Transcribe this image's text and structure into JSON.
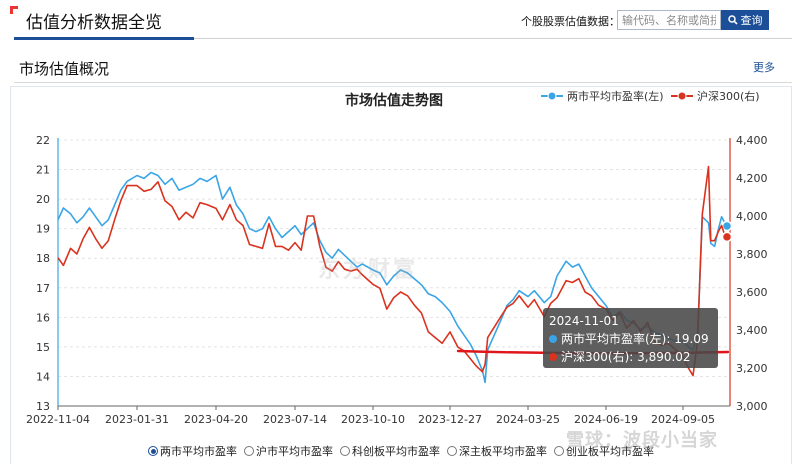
{
  "header": {
    "title": "估值分析数据全览",
    "search_label": "个股股票估值数据：",
    "search_placeholder": "输代码、名称或简拼",
    "search_button": "查询"
  },
  "section": {
    "title": "市场估值概况",
    "more": "更多"
  },
  "tooltip": {
    "date": "2024-11-01",
    "row1": "两市平均市盈率(左): 19.09",
    "row2": "沪深300(右): 3,890.02"
  },
  "options": [
    {
      "label": "两市平均市盈率",
      "selected": true
    },
    {
      "label": "沪市平均市盈率",
      "selected": false
    },
    {
      "label": "科创板平均市盈率",
      "selected": false
    },
    {
      "label": "深主板平均市盈率",
      "selected": false
    },
    {
      "label": "创业板平均市盈率",
      "selected": false
    }
  ],
  "watermark_center": "东方财富",
  "watermark_corner": "雪球：波段小当家",
  "colors": {
    "pe_line": "#3aa5e6",
    "csi_line": "#d9331f",
    "annotation": "#e0151b",
    "brand": "#1d4f99"
  },
  "chart_data": {
    "type": "line",
    "title": "市场估值走势图",
    "x_ticks": [
      "2022-11-04",
      "2023-01-31",
      "2023-04-20",
      "2023-07-14",
      "2023-10-10",
      "2023-12-27",
      "2024-03-25",
      "2024-06-19",
      "2024-09-05"
    ],
    "x_range": [
      "2022-11-04",
      "2024-11-01"
    ],
    "y_left": {
      "min": 13,
      "max": 22,
      "ticks": [
        "13",
        "14",
        "15",
        "16",
        "17",
        "18",
        "19",
        "20",
        "21",
        "22"
      ]
    },
    "y_right": {
      "min": 3000,
      "max": 4400,
      "ticks": [
        "3,000",
        "3,200",
        "3,400",
        "3,600",
        "3,800",
        "4,000",
        "4,200",
        "4,400"
      ]
    },
    "legend_position": "top-right",
    "grid": true,
    "series": [
      {
        "name": "两市平均市盈率(左)",
        "axis": "left",
        "points": [
          [
            "2022-11-04",
            19.3
          ],
          [
            "2022-11-10",
            19.7
          ],
          [
            "2022-11-18",
            19.5
          ],
          [
            "2022-11-25",
            19.2
          ],
          [
            "2022-12-02",
            19.4
          ],
          [
            "2022-12-09",
            19.7
          ],
          [
            "2022-12-16",
            19.4
          ],
          [
            "2022-12-23",
            19.1
          ],
          [
            "2022-12-30",
            19.3
          ],
          [
            "2023-01-06",
            19.8
          ],
          [
            "2023-01-13",
            20.3
          ],
          [
            "2023-01-20",
            20.6
          ],
          [
            "2023-01-31",
            20.8
          ],
          [
            "2023-02-07",
            20.7
          ],
          [
            "2023-02-14",
            20.9
          ],
          [
            "2023-02-21",
            20.8
          ],
          [
            "2023-02-28",
            20.5
          ],
          [
            "2023-03-07",
            20.7
          ],
          [
            "2023-03-14",
            20.3
          ],
          [
            "2023-03-21",
            20.4
          ],
          [
            "2023-03-28",
            20.5
          ],
          [
            "2023-04-04",
            20.7
          ],
          [
            "2023-04-11",
            20.6
          ],
          [
            "2023-04-20",
            20.8
          ],
          [
            "2023-04-27",
            20.0
          ],
          [
            "2023-05-05",
            20.4
          ],
          [
            "2023-05-12",
            19.8
          ],
          [
            "2023-05-19",
            19.5
          ],
          [
            "2023-05-26",
            19.0
          ],
          [
            "2023-06-02",
            18.9
          ],
          [
            "2023-06-09",
            19.0
          ],
          [
            "2023-06-16",
            19.4
          ],
          [
            "2023-06-23",
            19.0
          ],
          [
            "2023-06-30",
            18.7
          ],
          [
            "2023-07-07",
            18.9
          ],
          [
            "2023-07-14",
            19.1
          ],
          [
            "2023-07-21",
            18.8
          ],
          [
            "2023-07-28",
            19.0
          ],
          [
            "2023-08-04",
            19.2
          ],
          [
            "2023-08-11",
            18.6
          ],
          [
            "2023-08-18",
            18.2
          ],
          [
            "2023-08-25",
            18.0
          ],
          [
            "2023-09-01",
            18.3
          ],
          [
            "2023-09-08",
            18.1
          ],
          [
            "2023-09-15",
            17.9
          ],
          [
            "2023-09-22",
            17.7
          ],
          [
            "2023-09-28",
            17.8
          ],
          [
            "2023-10-10",
            17.6
          ],
          [
            "2023-10-17",
            17.5
          ],
          [
            "2023-10-24",
            17.1
          ],
          [
            "2023-10-31",
            17.4
          ],
          [
            "2023-11-07",
            17.6
          ],
          [
            "2023-11-14",
            17.5
          ],
          [
            "2023-11-21",
            17.3
          ],
          [
            "2023-11-28",
            17.1
          ],
          [
            "2023-12-05",
            16.8
          ],
          [
            "2023-12-12",
            16.7
          ],
          [
            "2023-12-19",
            16.5
          ],
          [
            "2023-12-27",
            16.2
          ],
          [
            "2024-01-05",
            15.7
          ],
          [
            "2024-01-12",
            15.4
          ],
          [
            "2024-01-19",
            15.1
          ],
          [
            "2024-01-26",
            14.7
          ],
          [
            "2024-02-02",
            14.2
          ],
          [
            "2024-02-05",
            13.8
          ],
          [
            "2024-02-08",
            14.9
          ],
          [
            "2024-02-23",
            15.9
          ],
          [
            "2024-03-01",
            16.4
          ],
          [
            "2024-03-08",
            16.6
          ],
          [
            "2024-03-15",
            16.9
          ],
          [
            "2024-03-25",
            16.7
          ],
          [
            "2024-04-01",
            16.9
          ],
          [
            "2024-04-12",
            16.5
          ],
          [
            "2024-04-19",
            16.7
          ],
          [
            "2024-04-26",
            17.4
          ],
          [
            "2024-05-06",
            17.9
          ],
          [
            "2024-05-13",
            17.7
          ],
          [
            "2024-05-20",
            17.8
          ],
          [
            "2024-05-27",
            17.4
          ],
          [
            "2024-06-03",
            17.0
          ],
          [
            "2024-06-11",
            16.7
          ],
          [
            "2024-06-19",
            16.4
          ],
          [
            "2024-06-26",
            16.0
          ],
          [
            "2024-07-03",
            16.2
          ],
          [
            "2024-07-10",
            15.9
          ],
          [
            "2024-07-17",
            15.8
          ],
          [
            "2024-07-24",
            15.6
          ],
          [
            "2024-07-31",
            15.7
          ],
          [
            "2024-08-07",
            15.5
          ],
          [
            "2024-08-14",
            15.4
          ],
          [
            "2024-08-21",
            15.3
          ],
          [
            "2024-08-28",
            15.2
          ],
          [
            "2024-09-05",
            15.2
          ],
          [
            "2024-09-12",
            15.0
          ],
          [
            "2024-09-18",
            14.9
          ],
          [
            "2024-09-24",
            15.5
          ],
          [
            "2024-09-27",
            17.4
          ],
          [
            "2024-09-30",
            19.4
          ],
          [
            "2024-10-08",
            19.2
          ],
          [
            "2024-10-11",
            18.5
          ],
          [
            "2024-10-16",
            18.4
          ],
          [
            "2024-10-21",
            19.0
          ],
          [
            "2024-10-25",
            19.4
          ],
          [
            "2024-10-29",
            19.2
          ],
          [
            "2024-11-01",
            19.09
          ]
        ]
      },
      {
        "name": "沪深300(右)",
        "axis": "right",
        "points": [
          [
            "2022-11-04",
            3780
          ],
          [
            "2022-11-10",
            3740
          ],
          [
            "2022-11-18",
            3830
          ],
          [
            "2022-11-25",
            3800
          ],
          [
            "2022-12-02",
            3880
          ],
          [
            "2022-12-09",
            3940
          ],
          [
            "2022-12-16",
            3880
          ],
          [
            "2022-12-23",
            3830
          ],
          [
            "2022-12-30",
            3870
          ],
          [
            "2023-01-06",
            3980
          ],
          [
            "2023-01-13",
            4080
          ],
          [
            "2023-01-20",
            4160
          ],
          [
            "2023-01-31",
            4160
          ],
          [
            "2023-02-07",
            4130
          ],
          [
            "2023-02-14",
            4140
          ],
          [
            "2023-02-21",
            4180
          ],
          [
            "2023-02-28",
            4080
          ],
          [
            "2023-03-07",
            4050
          ],
          [
            "2023-03-14",
            3980
          ],
          [
            "2023-03-21",
            4020
          ],
          [
            "2023-03-28",
            3990
          ],
          [
            "2023-04-04",
            4070
          ],
          [
            "2023-04-11",
            4060
          ],
          [
            "2023-04-20",
            4040
          ],
          [
            "2023-04-27",
            3980
          ],
          [
            "2023-05-05",
            4060
          ],
          [
            "2023-05-12",
            3980
          ],
          [
            "2023-05-19",
            3950
          ],
          [
            "2023-05-26",
            3850
          ],
          [
            "2023-06-02",
            3840
          ],
          [
            "2023-06-09",
            3830
          ],
          [
            "2023-06-16",
            3960
          ],
          [
            "2023-06-23",
            3840
          ],
          [
            "2023-06-30",
            3840
          ],
          [
            "2023-07-07",
            3820
          ],
          [
            "2023-07-14",
            3860
          ],
          [
            "2023-07-21",
            3820
          ],
          [
            "2023-07-28",
            4000
          ],
          [
            "2023-08-04",
            4000
          ],
          [
            "2023-08-11",
            3840
          ],
          [
            "2023-08-18",
            3730
          ],
          [
            "2023-08-25",
            3710
          ],
          [
            "2023-09-01",
            3760
          ],
          [
            "2023-09-08",
            3720
          ],
          [
            "2023-09-15",
            3710
          ],
          [
            "2023-09-22",
            3720
          ],
          [
            "2023-09-28",
            3690
          ],
          [
            "2023-10-10",
            3640
          ],
          [
            "2023-10-17",
            3620
          ],
          [
            "2023-10-24",
            3510
          ],
          [
            "2023-10-31",
            3570
          ],
          [
            "2023-11-07",
            3600
          ],
          [
            "2023-11-14",
            3580
          ],
          [
            "2023-11-21",
            3530
          ],
          [
            "2023-11-28",
            3490
          ],
          [
            "2023-12-05",
            3390
          ],
          [
            "2023-12-12",
            3360
          ],
          [
            "2023-12-19",
            3330
          ],
          [
            "2023-12-27",
            3390
          ],
          [
            "2024-01-05",
            3310
          ],
          [
            "2024-01-12",
            3290
          ],
          [
            "2024-01-19",
            3250
          ],
          [
            "2024-01-26",
            3210
          ],
          [
            "2024-02-02",
            3180
          ],
          [
            "2024-02-05",
            3220
          ],
          [
            "2024-02-08",
            3360
          ],
          [
            "2024-02-23",
            3470
          ],
          [
            "2024-03-01",
            3520
          ],
          [
            "2024-03-08",
            3540
          ],
          [
            "2024-03-15",
            3580
          ],
          [
            "2024-03-25",
            3520
          ],
          [
            "2024-04-01",
            3560
          ],
          [
            "2024-04-12",
            3470
          ],
          [
            "2024-04-19",
            3540
          ],
          [
            "2024-04-26",
            3570
          ],
          [
            "2024-05-06",
            3660
          ],
          [
            "2024-05-13",
            3650
          ],
          [
            "2024-05-20",
            3670
          ],
          [
            "2024-05-27",
            3600
          ],
          [
            "2024-06-03",
            3580
          ],
          [
            "2024-06-11",
            3530
          ],
          [
            "2024-06-19",
            3510
          ],
          [
            "2024-06-26",
            3450
          ],
          [
            "2024-07-03",
            3490
          ],
          [
            "2024-07-10",
            3410
          ],
          [
            "2024-07-17",
            3450
          ],
          [
            "2024-07-24",
            3390
          ],
          [
            "2024-07-31",
            3440
          ],
          [
            "2024-08-07",
            3340
          ],
          [
            "2024-08-14",
            3320
          ],
          [
            "2024-08-21",
            3330
          ],
          [
            "2024-08-28",
            3300
          ],
          [
            "2024-09-05",
            3260
          ],
          [
            "2024-09-12",
            3200
          ],
          [
            "2024-09-18",
            3160
          ],
          [
            "2024-09-24",
            3350
          ],
          [
            "2024-09-27",
            3700
          ],
          [
            "2024-09-30",
            4010
          ],
          [
            "2024-10-08",
            4260
          ],
          [
            "2024-10-11",
            3870
          ],
          [
            "2024-10-16",
            3870
          ],
          [
            "2024-10-21",
            3920
          ],
          [
            "2024-10-25",
            3950
          ],
          [
            "2024-10-29",
            3900
          ],
          [
            "2024-11-01",
            3890.02
          ]
        ]
      }
    ]
  }
}
